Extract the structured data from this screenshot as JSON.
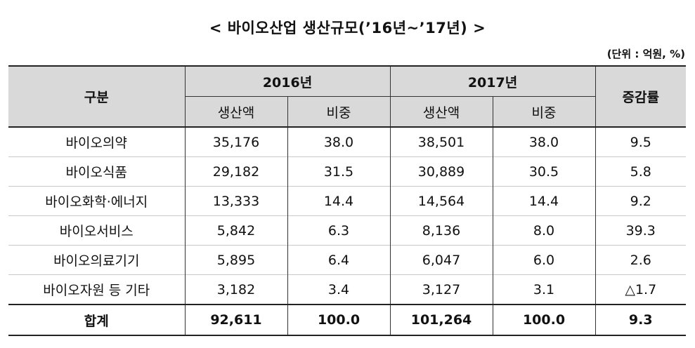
{
  "title": "< 바이오산업 생산규모(’16년~’17년) >",
  "unit": "(단위 : 억원, %)",
  "header": {
    "category": "구분",
    "year1": "2016년",
    "year2": "2017년",
    "growth": "증감률",
    "production": "생산액",
    "share": "비중"
  },
  "rows": [
    {
      "name": "바이오의약",
      "p2016": "35,176",
      "s2016": "38.0",
      "p2017": "38,501",
      "s2017": "38.0",
      "growth": "9.5"
    },
    {
      "name": "바이오식품",
      "p2016": "29,182",
      "s2016": "31.5",
      "p2017": "30,889",
      "s2017": "30.5",
      "growth": "5.8"
    },
    {
      "name": "바이오화학·에너지",
      "p2016": "13,333",
      "s2016": "14.4",
      "p2017": "14,564",
      "s2017": "14.4",
      "growth": "9.2"
    },
    {
      "name": "바이오서비스",
      "p2016": "5,842",
      "s2016": "6.3",
      "p2017": "8,136",
      "s2017": "8.0",
      "growth": "39.3"
    },
    {
      "name": "바이오의료기기",
      "p2016": "5,895",
      "s2016": "6.4",
      "p2017": "6,047",
      "s2017": "6.0",
      "growth": "2.6"
    },
    {
      "name": "바이오자원 등 기타",
      "p2016": "3,182",
      "s2016": "3.4",
      "p2017": "3,127",
      "s2017": "3.1",
      "growth": "△1.7"
    }
  ],
  "total": {
    "name": "합계",
    "p2016": "92,611",
    "s2016": "100.0",
    "p2017": "101,264",
    "s2017": "100.0",
    "growth": "9.3"
  }
}
